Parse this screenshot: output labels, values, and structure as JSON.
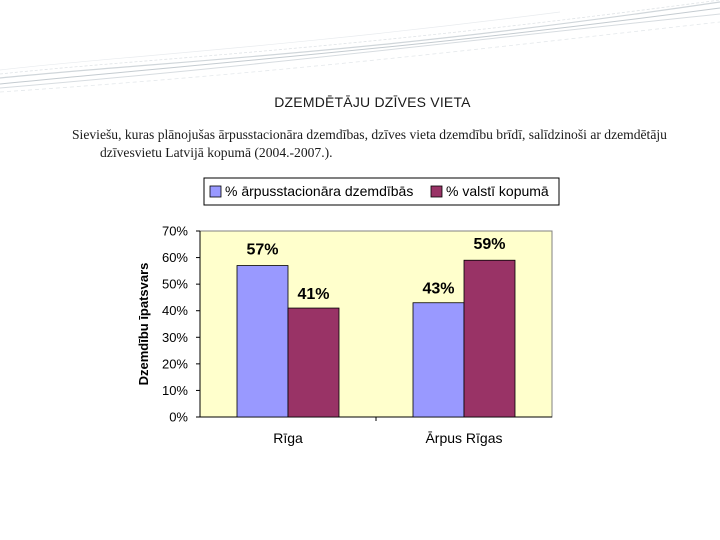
{
  "slide": {
    "title": "DZEMDĒTĀJU DZĪVES VIETA",
    "subtitle": "Sieviešu, kuras plānojušas ārpusstacionāra dzemdības, dzīves vieta dzemdību brīdī, salīdzinoši ar dzemdētāju dzīvesvietu Latvijā kopumā (2004.-2007.)."
  },
  "chart_data": {
    "type": "bar",
    "categories": [
      "Rīga",
      "Ārpus Rīgas"
    ],
    "series": [
      {
        "name": "% ārpusstacionāra dzemdībās",
        "values": [
          57,
          43
        ],
        "labels": [
          "57%",
          "43%"
        ],
        "color": "#9999FF"
      },
      {
        "name": "% valstī kopumā",
        "values": [
          41,
          59
        ],
        "labels": [
          "41%",
          "59%"
        ],
        "color": "#993366"
      }
    ],
    "ylabel": "Dzemdību īpatsvars",
    "ylim": [
      0,
      70
    ],
    "yticks": [
      0,
      10,
      20,
      30,
      40,
      50,
      60,
      70
    ],
    "ytick_labels": [
      "0%",
      "10%",
      "20%",
      "30%",
      "40%",
      "50%",
      "60%",
      "70%"
    ],
    "plot_background": "#FFFFCC",
    "grid": false,
    "legend": "top"
  }
}
